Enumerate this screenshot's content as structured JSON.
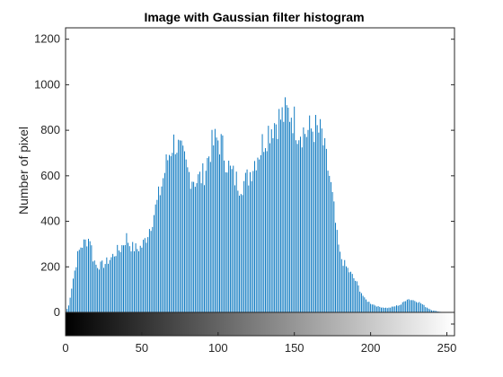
{
  "chart_data": {
    "type": "bar",
    "title": "Image with Gaussian filter histogram",
    "xlabel": "",
    "ylabel": "Number of pixel",
    "xlim": [
      0,
      255
    ],
    "ylim": [
      0,
      1250
    ],
    "grid": false,
    "x_ticks": [
      "0",
      "50",
      "100",
      "150",
      "200",
      "250"
    ],
    "y_ticks": [
      "0",
      "200",
      "400",
      "600",
      "800",
      "1000",
      "1200"
    ],
    "colorbar_ticks": [
      "0",
      "250"
    ],
    "bar_color": "#0072BD",
    "control_points": {
      "x": [
        0,
        2,
        5,
        8,
        10,
        13,
        16,
        18,
        20,
        23,
        26,
        30,
        33,
        36,
        40,
        42,
        44,
        47,
        50,
        53,
        56,
        60,
        63,
        66,
        68,
        70,
        72,
        74,
        76,
        78,
        80,
        82,
        84,
        86,
        88,
        90,
        92,
        95,
        98,
        100,
        102,
        104,
        106,
        108,
        110,
        112,
        114,
        116,
        118,
        120,
        123,
        126,
        128,
        130,
        133,
        136,
        140,
        142,
        144,
        146,
        148,
        150,
        152,
        155,
        158,
        160,
        163,
        166,
        168,
        170,
        173,
        176,
        178,
        180,
        183,
        186,
        190,
        193,
        196,
        200,
        205,
        210,
        212,
        215,
        220,
        224,
        227,
        230,
        233,
        236,
        240,
        245,
        250,
        255
      ],
      "y": [
        0,
        30,
        150,
        250,
        290,
        310,
        330,
        240,
        210,
        205,
        215,
        240,
        265,
        280,
        330,
        300,
        285,
        280,
        290,
        330,
        390,
        480,
        560,
        650,
        700,
        740,
        750,
        720,
        690,
        660,
        620,
        600,
        590,
        580,
        590,
        600,
        640,
        720,
        750,
        760,
        740,
        700,
        660,
        620,
        600,
        580,
        565,
        570,
        575,
        600,
        650,
        700,
        720,
        760,
        800,
        830,
        850,
        860,
        870,
        875,
        880,
        840,
        810,
        800,
        790,
        800,
        810,
        790,
        780,
        700,
        600,
        450,
        330,
        250,
        210,
        180,
        140,
        100,
        60,
        40,
        25,
        20,
        20,
        25,
        35,
        60,
        55,
        50,
        40,
        25,
        10,
        3,
        0,
        0
      ]
    }
  }
}
